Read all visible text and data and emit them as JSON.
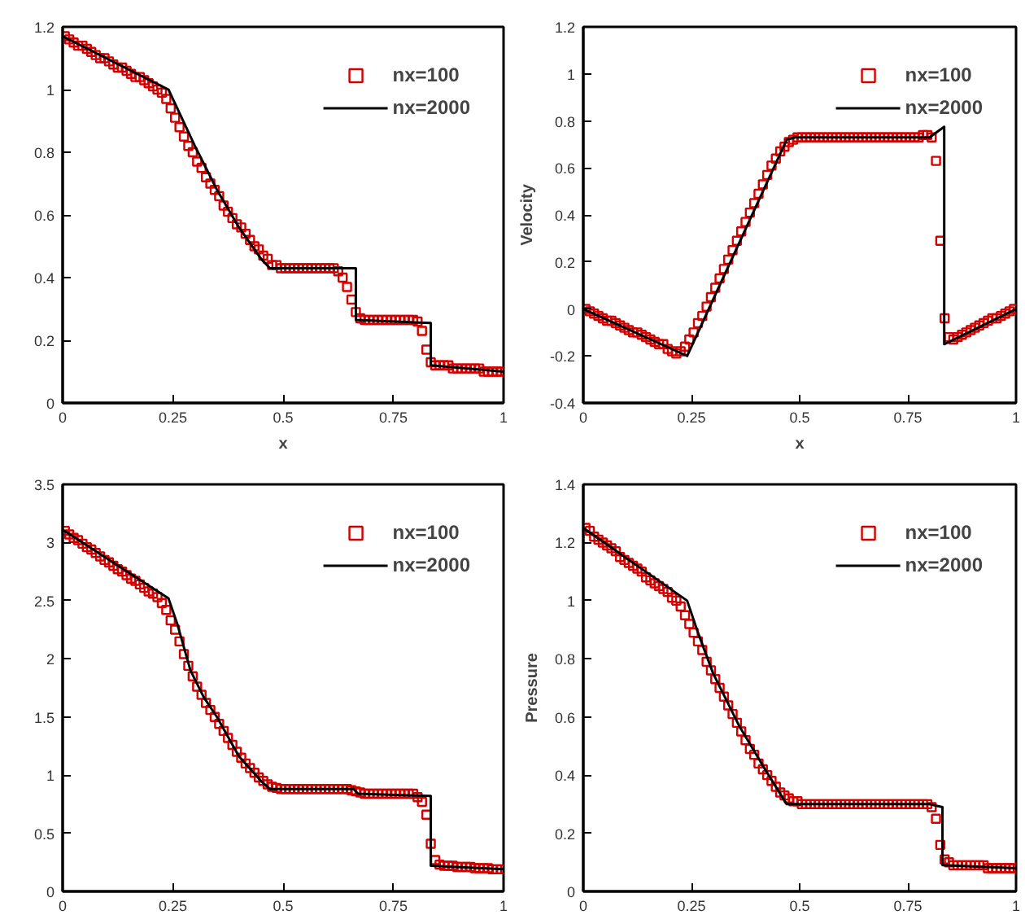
{
  "chart_data": [
    {
      "type": "scatter",
      "xlabel": "x",
      "xlim": [
        0,
        1
      ],
      "ylim": [
        0,
        1.2
      ],
      "xticks": [
        0,
        0.25,
        0.5,
        0.75,
        1
      ],
      "yticks": [
        0,
        0.2,
        0.4,
        0.6,
        0.8,
        1,
        1.2
      ],
      "legend": "top right",
      "grid": false,
      "x": [
        0.005,
        0.015,
        0.025,
        0.035,
        0.045,
        0.055,
        0.065,
        0.075,
        0.085,
        0.095,
        0.105,
        0.115,
        0.125,
        0.135,
        0.145,
        0.155,
        0.165,
        0.175,
        0.185,
        0.195,
        0.205,
        0.215,
        0.225,
        0.235,
        0.245,
        0.255,
        0.265,
        0.275,
        0.285,
        0.295,
        0.305,
        0.315,
        0.325,
        0.335,
        0.345,
        0.355,
        0.365,
        0.375,
        0.385,
        0.395,
        0.405,
        0.415,
        0.425,
        0.435,
        0.445,
        0.455,
        0.465,
        0.475,
        0.485,
        0.495,
        0.505,
        0.515,
        0.525,
        0.535,
        0.545,
        0.555,
        0.565,
        0.575,
        0.585,
        0.595,
        0.605,
        0.615,
        0.625,
        0.635,
        0.645,
        0.655,
        0.665,
        0.675,
        0.685,
        0.695,
        0.705,
        0.715,
        0.725,
        0.735,
        0.745,
        0.755,
        0.765,
        0.775,
        0.785,
        0.795,
        0.805,
        0.815,
        0.825,
        0.835,
        0.845,
        0.855,
        0.865,
        0.875,
        0.885,
        0.895,
        0.905,
        0.915,
        0.925,
        0.935,
        0.945,
        0.955,
        0.965,
        0.975,
        0.985,
        0.995
      ],
      "series": [
        {
          "name": "nx=100",
          "marker": "square",
          "color": "#d40000",
          "values": [
            1.17,
            1.16,
            1.15,
            1.14,
            1.14,
            1.13,
            1.12,
            1.11,
            1.1,
            1.1,
            1.09,
            1.08,
            1.07,
            1.07,
            1.06,
            1.05,
            1.04,
            1.04,
            1.03,
            1.02,
            1.01,
            1.0,
            0.99,
            0.97,
            0.94,
            0.91,
            0.88,
            0.85,
            0.82,
            0.8,
            0.77,
            0.75,
            0.72,
            0.7,
            0.68,
            0.66,
            0.63,
            0.61,
            0.59,
            0.57,
            0.56,
            0.54,
            0.52,
            0.5,
            0.49,
            0.47,
            0.46,
            0.44,
            0.44,
            0.43,
            0.43,
            0.43,
            0.43,
            0.43,
            0.43,
            0.43,
            0.43,
            0.43,
            0.43,
            0.43,
            0.43,
            0.43,
            0.42,
            0.4,
            0.37,
            0.33,
            0.29,
            0.27,
            0.265,
            0.265,
            0.265,
            0.265,
            0.265,
            0.265,
            0.265,
            0.265,
            0.265,
            0.265,
            0.265,
            0.265,
            0.26,
            0.23,
            0.17,
            0.13,
            0.12,
            0.12,
            0.12,
            0.12,
            0.11,
            0.11,
            0.11,
            0.11,
            0.11,
            0.11,
            0.11,
            0.1,
            0.1,
            0.1,
            0.1,
            0.1
          ]
        },
        {
          "name": "nx=2000",
          "type": "line",
          "color": "#000000",
          "x": [
            0,
            0.24,
            0.3,
            0.35,
            0.4,
            0.45,
            0.47,
            0.665,
            0.665,
            0.835,
            0.835,
            1
          ],
          "values": [
            1.17,
            1.0,
            0.82,
            0.68,
            0.56,
            0.46,
            0.43,
            0.43,
            0.265,
            0.255,
            0.12,
            0.1
          ]
        }
      ]
    },
    {
      "type": "scatter",
      "xlabel": "x",
      "ylabel": "Velocity",
      "xlim": [
        0,
        1
      ],
      "ylim": [
        -0.4,
        1.2
      ],
      "xticks": [
        0,
        0.25,
        0.5,
        0.75,
        1
      ],
      "yticks": [
        -0.4,
        -0.2,
        0,
        0.2,
        0.4,
        0.6,
        0.8,
        1,
        1.2
      ],
      "legend": "top right",
      "grid": false,
      "x": [
        0.005,
        0.015,
        0.025,
        0.035,
        0.045,
        0.055,
        0.065,
        0.075,
        0.085,
        0.095,
        0.105,
        0.115,
        0.125,
        0.135,
        0.145,
        0.155,
        0.165,
        0.175,
        0.185,
        0.195,
        0.205,
        0.215,
        0.225,
        0.235,
        0.245,
        0.255,
        0.265,
        0.275,
        0.285,
        0.295,
        0.305,
        0.315,
        0.325,
        0.335,
        0.345,
        0.355,
        0.365,
        0.375,
        0.385,
        0.395,
        0.405,
        0.415,
        0.425,
        0.435,
        0.445,
        0.455,
        0.465,
        0.475,
        0.485,
        0.495,
        0.505,
        0.515,
        0.525,
        0.535,
        0.545,
        0.555,
        0.565,
        0.575,
        0.585,
        0.595,
        0.605,
        0.615,
        0.625,
        0.635,
        0.645,
        0.655,
        0.665,
        0.675,
        0.685,
        0.695,
        0.705,
        0.715,
        0.725,
        0.735,
        0.745,
        0.755,
        0.765,
        0.775,
        0.785,
        0.795,
        0.805,
        0.815,
        0.825,
        0.835,
        0.845,
        0.855,
        0.865,
        0.875,
        0.885,
        0.895,
        0.905,
        0.915,
        0.925,
        0.935,
        0.945,
        0.955,
        0.965,
        0.975,
        0.985,
        0.995
      ],
      "series": [
        {
          "name": "nx=100",
          "marker": "square",
          "color": "#d40000",
          "values": [
            0.0,
            -0.01,
            -0.02,
            -0.03,
            -0.04,
            -0.05,
            -0.05,
            -0.06,
            -0.07,
            -0.08,
            -0.09,
            -0.1,
            -0.1,
            -0.11,
            -0.12,
            -0.13,
            -0.14,
            -0.15,
            -0.15,
            -0.17,
            -0.18,
            -0.19,
            -0.18,
            -0.16,
            -0.13,
            -0.1,
            -0.06,
            -0.03,
            0.01,
            0.05,
            0.09,
            0.13,
            0.17,
            0.21,
            0.25,
            0.29,
            0.33,
            0.37,
            0.41,
            0.45,
            0.49,
            0.53,
            0.57,
            0.61,
            0.64,
            0.67,
            0.69,
            0.71,
            0.72,
            0.73,
            0.73,
            0.73,
            0.73,
            0.73,
            0.73,
            0.73,
            0.73,
            0.73,
            0.73,
            0.73,
            0.73,
            0.73,
            0.73,
            0.73,
            0.73,
            0.73,
            0.73,
            0.73,
            0.73,
            0.73,
            0.73,
            0.73,
            0.73,
            0.73,
            0.73,
            0.73,
            0.73,
            0.73,
            0.74,
            0.74,
            0.73,
            0.63,
            0.29,
            -0.04,
            -0.12,
            -0.13,
            -0.12,
            -0.11,
            -0.1,
            -0.09,
            -0.08,
            -0.07,
            -0.06,
            -0.05,
            -0.04,
            -0.04,
            -0.03,
            -0.02,
            -0.01,
            0.0
          ]
        },
        {
          "name": "nx=2000",
          "type": "line",
          "color": "#000000",
          "x": [
            0,
            0.24,
            0.47,
            0.49,
            0.8,
            0.834,
            0.834,
            1
          ],
          "values": [
            0,
            -0.2,
            0.72,
            0.73,
            0.73,
            0.775,
            -0.15,
            0.0
          ]
        }
      ]
    },
    {
      "type": "scatter",
      "xlim": [
        0,
        1
      ],
      "ylim": [
        0,
        3.5
      ],
      "xticks": [
        0,
        0.25,
        0.5,
        0.75,
        1
      ],
      "yticks": [
        0,
        0.5,
        1,
        1.5,
        2,
        2.5,
        3,
        3.5
      ],
      "legend": "top right",
      "grid": false,
      "x": [
        0.005,
        0.015,
        0.025,
        0.035,
        0.045,
        0.055,
        0.065,
        0.075,
        0.085,
        0.095,
        0.105,
        0.115,
        0.125,
        0.135,
        0.145,
        0.155,
        0.165,
        0.175,
        0.185,
        0.195,
        0.205,
        0.215,
        0.225,
        0.235,
        0.245,
        0.255,
        0.265,
        0.275,
        0.285,
        0.295,
        0.305,
        0.315,
        0.325,
        0.335,
        0.345,
        0.355,
        0.365,
        0.375,
        0.385,
        0.395,
        0.405,
        0.415,
        0.425,
        0.435,
        0.445,
        0.455,
        0.465,
        0.475,
        0.485,
        0.495,
        0.505,
        0.515,
        0.525,
        0.535,
        0.545,
        0.555,
        0.565,
        0.575,
        0.585,
        0.595,
        0.605,
        0.615,
        0.625,
        0.635,
        0.645,
        0.655,
        0.665,
        0.675,
        0.685,
        0.695,
        0.705,
        0.715,
        0.725,
        0.735,
        0.745,
        0.755,
        0.765,
        0.775,
        0.785,
        0.795,
        0.805,
        0.815,
        0.825,
        0.835,
        0.845,
        0.855,
        0.865,
        0.875,
        0.885,
        0.895,
        0.905,
        0.915,
        0.925,
        0.935,
        0.945,
        0.955,
        0.965,
        0.975,
        0.985,
        0.995
      ],
      "series": [
        {
          "name": "nx=100",
          "marker": "square",
          "color": "#d40000",
          "values": [
            3.1,
            3.07,
            3.04,
            3.02,
            2.99,
            2.96,
            2.94,
            2.91,
            2.88,
            2.85,
            2.83,
            2.8,
            2.77,
            2.75,
            2.72,
            2.69,
            2.67,
            2.64,
            2.61,
            2.58,
            2.56,
            2.53,
            2.48,
            2.42,
            2.33,
            2.25,
            2.15,
            2.04,
            1.94,
            1.85,
            1.76,
            1.69,
            1.62,
            1.56,
            1.5,
            1.44,
            1.38,
            1.32,
            1.26,
            1.2,
            1.15,
            1.1,
            1.06,
            1.02,
            0.98,
            0.95,
            0.92,
            0.9,
            0.89,
            0.88,
            0.88,
            0.88,
            0.88,
            0.88,
            0.88,
            0.88,
            0.88,
            0.88,
            0.88,
            0.88,
            0.88,
            0.88,
            0.88,
            0.88,
            0.88,
            0.87,
            0.86,
            0.85,
            0.84,
            0.84,
            0.84,
            0.84,
            0.84,
            0.84,
            0.84,
            0.84,
            0.84,
            0.84,
            0.84,
            0.84,
            0.81,
            0.77,
            0.66,
            0.41,
            0.27,
            0.23,
            0.22,
            0.22,
            0.22,
            0.21,
            0.21,
            0.21,
            0.21,
            0.2,
            0.2,
            0.2,
            0.2,
            0.19,
            0.19,
            0.19
          ]
        },
        {
          "name": "nx=2000",
          "type": "line",
          "color": "#000000",
          "x": [
            0,
            0.24,
            0.26,
            0.29,
            0.32,
            0.35,
            0.4,
            0.45,
            0.47,
            0.66,
            0.67,
            0.835,
            0.835,
            1
          ],
          "values": [
            3.11,
            2.52,
            2.3,
            1.9,
            1.67,
            1.5,
            1.16,
            0.95,
            0.88,
            0.88,
            0.84,
            0.82,
            0.22,
            0.19
          ]
        }
      ]
    },
    {
      "type": "scatter",
      "ylabel": "Pressure",
      "xlim": [
        0,
        1
      ],
      "ylim": [
        0,
        1.4
      ],
      "xticks": [
        0,
        0.25,
        0.5,
        0.75,
        1
      ],
      "yticks": [
        0,
        0.2,
        0.4,
        0.6,
        0.8,
        1,
        1.2,
        1.4
      ],
      "legend": "top right",
      "grid": false,
      "x": [
        0.005,
        0.015,
        0.025,
        0.035,
        0.045,
        0.055,
        0.065,
        0.075,
        0.085,
        0.095,
        0.105,
        0.115,
        0.125,
        0.135,
        0.145,
        0.155,
        0.165,
        0.175,
        0.185,
        0.195,
        0.205,
        0.215,
        0.225,
        0.235,
        0.245,
        0.255,
        0.265,
        0.275,
        0.285,
        0.295,
        0.305,
        0.315,
        0.325,
        0.335,
        0.345,
        0.355,
        0.365,
        0.375,
        0.385,
        0.395,
        0.405,
        0.415,
        0.425,
        0.435,
        0.445,
        0.455,
        0.465,
        0.475,
        0.485,
        0.495,
        0.505,
        0.515,
        0.525,
        0.535,
        0.545,
        0.555,
        0.565,
        0.575,
        0.585,
        0.595,
        0.605,
        0.615,
        0.625,
        0.635,
        0.645,
        0.655,
        0.665,
        0.675,
        0.685,
        0.695,
        0.705,
        0.715,
        0.725,
        0.735,
        0.745,
        0.755,
        0.765,
        0.775,
        0.785,
        0.795,
        0.805,
        0.815,
        0.825,
        0.835,
        0.845,
        0.855,
        0.865,
        0.875,
        0.885,
        0.895,
        0.905,
        0.915,
        0.925,
        0.935,
        0.945,
        0.955,
        0.965,
        0.975,
        0.985,
        0.995
      ],
      "series": [
        {
          "name": "nx=100",
          "marker": "square",
          "color": "#d40000",
          "values": [
            1.25,
            1.24,
            1.22,
            1.21,
            1.2,
            1.19,
            1.18,
            1.17,
            1.15,
            1.14,
            1.13,
            1.12,
            1.11,
            1.1,
            1.08,
            1.07,
            1.06,
            1.05,
            1.04,
            1.03,
            1.01,
            1.0,
            0.98,
            0.95,
            0.92,
            0.89,
            0.86,
            0.83,
            0.79,
            0.76,
            0.73,
            0.7,
            0.67,
            0.64,
            0.61,
            0.58,
            0.55,
            0.52,
            0.49,
            0.47,
            0.44,
            0.42,
            0.4,
            0.38,
            0.36,
            0.34,
            0.33,
            0.32,
            0.31,
            0.31,
            0.3,
            0.3,
            0.3,
            0.3,
            0.3,
            0.3,
            0.3,
            0.3,
            0.3,
            0.3,
            0.3,
            0.3,
            0.3,
            0.3,
            0.3,
            0.3,
            0.3,
            0.3,
            0.3,
            0.3,
            0.3,
            0.3,
            0.3,
            0.3,
            0.3,
            0.3,
            0.3,
            0.3,
            0.3,
            0.3,
            0.29,
            0.25,
            0.16,
            0.11,
            0.1,
            0.09,
            0.09,
            0.09,
            0.09,
            0.09,
            0.09,
            0.09,
            0.09,
            0.08,
            0.08,
            0.08,
            0.08,
            0.08,
            0.08,
            0.08
          ]
        },
        {
          "name": "nx=2000",
          "type": "line",
          "color": "#000000",
          "x": [
            0,
            0.24,
            0.265,
            0.3,
            0.36,
            0.42,
            0.47,
            0.8,
            0.83,
            0.83,
            1
          ],
          "values": [
            1.25,
            1.0,
            0.89,
            0.75,
            0.57,
            0.42,
            0.3,
            0.3,
            0.29,
            0.09,
            0.08
          ]
        }
      ]
    }
  ]
}
